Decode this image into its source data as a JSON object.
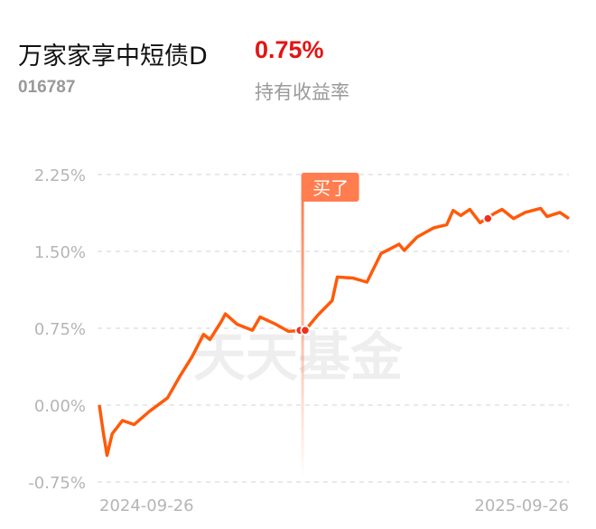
{
  "fund": {
    "name": "万家家享中短债D",
    "code": "016787",
    "return_value": "0.75%",
    "return_label": "持有收益率"
  },
  "watermark": "天天基金",
  "colors": {
    "line": "#ff5a0a",
    "positive": "#e31414",
    "marker": "#f0301e",
    "buy_tag": "#ff7d4f"
  },
  "chart_data": {
    "type": "line",
    "ylim": [
      -0.75,
      2.25
    ],
    "y_ticks": [
      "2.25%",
      "1.50%",
      "0.75%",
      "0.00%",
      "-0.75%"
    ],
    "y_tick_values": [
      2.25,
      1.5,
      0.75,
      0,
      -0.75
    ],
    "x_ticks": [
      "2024-09-26",
      "2025-09-26"
    ],
    "grid": true,
    "series": [
      {
        "points": [
          [
            "2024-09-26",
            0.0
          ],
          [
            "2024-09-29",
            -0.26
          ],
          [
            "2024-10-02",
            -0.49
          ],
          [
            "2024-10-06",
            -0.28
          ],
          [
            "2024-10-14",
            -0.15
          ],
          [
            "2024-10-23",
            -0.19
          ],
          [
            "2024-11-04",
            -0.06
          ],
          [
            "2024-11-18",
            0.07
          ],
          [
            "2024-11-28",
            0.29
          ],
          [
            "2024-12-07",
            0.47
          ],
          [
            "2024-12-16",
            0.69
          ],
          [
            "2024-12-21",
            0.64
          ],
          [
            "2024-12-30",
            0.82
          ],
          [
            "2025-01-02",
            0.89
          ],
          [
            "2025-01-11",
            0.79
          ],
          [
            "2025-01-23",
            0.73
          ],
          [
            "2025-01-29",
            0.86
          ],
          [
            "2025-02-10",
            0.79
          ],
          [
            "2025-02-20",
            0.72
          ],
          [
            "2025-03-05",
            0.73
          ],
          [
            "2025-03-15",
            0.88
          ],
          [
            "2025-03-26",
            1.02
          ],
          [
            "2025-03-30",
            1.25
          ],
          [
            "2025-04-11",
            1.24
          ],
          [
            "2025-04-22",
            1.2
          ],
          [
            "2025-05-03",
            1.48
          ],
          [
            "2025-05-17",
            1.57
          ],
          [
            "2025-05-21",
            1.51
          ],
          [
            "2025-05-31",
            1.64
          ],
          [
            "2025-06-13",
            1.73
          ],
          [
            "2025-06-23",
            1.76
          ],
          [
            "2025-06-28",
            1.9
          ],
          [
            "2025-07-04",
            1.85
          ],
          [
            "2025-07-11",
            1.91
          ],
          [
            "2025-07-19",
            1.78
          ],
          [
            "2025-07-30",
            1.87
          ],
          [
            "2025-08-05",
            1.91
          ],
          [
            "2025-08-14",
            1.82
          ],
          [
            "2025-08-23",
            1.88
          ],
          [
            "2025-09-04",
            1.92
          ],
          [
            "2025-09-09",
            1.84
          ],
          [
            "2025-09-19",
            1.88
          ],
          [
            "2025-09-26",
            1.82
          ]
        ]
      }
    ],
    "annotations": [
      {
        "date": "2025-03-03",
        "value": 0.73,
        "label": "买了"
      }
    ],
    "markers": [
      {
        "date": "2025-03-01",
        "value": 0.73
      },
      {
        "date": "2025-03-05",
        "value": 0.73
      },
      {
        "date": "2025-07-25",
        "value": 1.82
      }
    ]
  }
}
